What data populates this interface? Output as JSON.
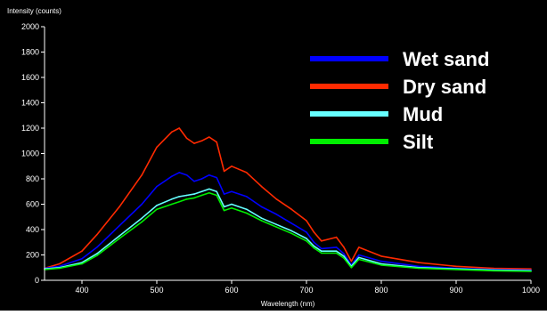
{
  "chart_data": {
    "type": "line",
    "title": "",
    "xlabel": "Wavelength (nm)",
    "ylabel": "Intensity (counts)",
    "xlim": [
      350,
      1000
    ],
    "ylim": [
      0,
      2000
    ],
    "x_ticks": [
      400,
      500,
      600,
      700,
      800,
      900,
      1000
    ],
    "y_ticks": [
      0,
      200,
      400,
      600,
      800,
      1000,
      1200,
      1400,
      1600,
      1800,
      2000
    ],
    "grid": false,
    "legend_position": "top-right",
    "background_color": "#000000",
    "x": [
      350,
      370,
      400,
      420,
      450,
      480,
      500,
      520,
      530,
      540,
      550,
      560,
      570,
      580,
      590,
      600,
      620,
      640,
      660,
      680,
      700,
      710,
      720,
      740,
      750,
      760,
      770,
      800,
      850,
      900,
      950,
      1000
    ],
    "series": [
      {
        "name": "Wet sand",
        "color": "#0000ff",
        "values": [
          95,
          110,
          170,
          260,
          430,
          600,
          740,
          820,
          850,
          830,
          780,
          800,
          830,
          810,
          680,
          700,
          660,
          580,
          520,
          450,
          380,
          300,
          250,
          260,
          210,
          120,
          200,
          150,
          110,
          95,
          85,
          80
        ]
      },
      {
        "name": "Dry sand",
        "color": "#ff2a00",
        "values": [
          95,
          130,
          230,
          360,
          580,
          830,
          1050,
          1170,
          1200,
          1120,
          1080,
          1100,
          1130,
          1090,
          860,
          900,
          850,
          740,
          640,
          560,
          470,
          380,
          310,
          340,
          260,
          150,
          260,
          190,
          140,
          110,
          95,
          90
        ]
      },
      {
        "name": "Mud",
        "color": "#66ffff",
        "values": [
          90,
          100,
          140,
          210,
          350,
          490,
          590,
          640,
          660,
          670,
          680,
          700,
          720,
          700,
          580,
          600,
          560,
          490,
          440,
          390,
          330,
          270,
          230,
          230,
          190,
          110,
          180,
          130,
          100,
          90,
          80,
          75
        ]
      },
      {
        "name": "Silt",
        "color": "#00ee00",
        "values": [
          85,
          95,
          130,
          195,
          330,
          460,
          560,
          600,
          620,
          640,
          650,
          670,
          690,
          670,
          550,
          570,
          530,
          470,
          420,
          370,
          310,
          255,
          215,
          215,
          175,
          100,
          165,
          120,
          95,
          85,
          75,
          70
        ]
      }
    ]
  }
}
